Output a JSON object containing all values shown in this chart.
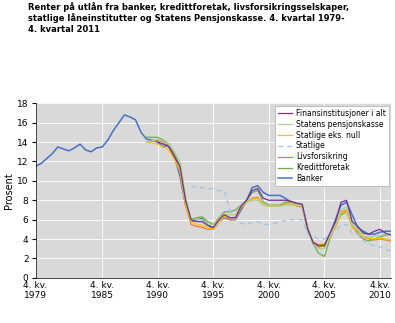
{
  "title_line1": "Renter på utlån fra banker, kredittforetak, livsforsikringsselskaper,",
  "title_line2": "statlige låneinstitutter og Statens Pensjonskasse. 4. kvartal 1979-",
  "title_line3": "4. kvartal 2011",
  "ylabel": "Prosent",
  "ylim": [
    0,
    18
  ],
  "yticks": [
    0,
    2,
    4,
    6,
    8,
    10,
    12,
    14,
    16,
    18
  ],
  "xlim": [
    0,
    128
  ],
  "xtick_positions": [
    0,
    24,
    44,
    64,
    84,
    104,
    124
  ],
  "xtick_labels": [
    "4. kv.\n1979",
    "4. kv.\n1985",
    "4. kv.\n1990",
    "4. kv.\n1995",
    "4. kv.\n2000",
    "4. kv.\n2005",
    "4.kv.\n2010"
  ],
  "plot_bg": "#d9d9d9",
  "series": {
    "Banker": {
      "color": "#4472c4",
      "dash": "solid",
      "lw": 1.1
    },
    "Kredittforetak": {
      "color": "#70ad47",
      "dash": "solid",
      "lw": 0.9
    },
    "Livsforsikring": {
      "color": "#ed7d31",
      "dash": "solid",
      "lw": 0.9
    },
    "Statlige": {
      "color": "#9dc3e6",
      "dash": "dashed",
      "lw": 0.9
    },
    "Statlige eks. null": {
      "color": "#ffc000",
      "dash": "solid",
      "lw": 0.9
    },
    "Statens pensjonskasse": {
      "color": "#a9d18e",
      "dash": "solid",
      "lw": 0.9
    },
    "Finansinstitusjoner i alt": {
      "color": "#7030a0",
      "dash": "solid",
      "lw": 0.9
    }
  },
  "legend_order": [
    "Finansinstitusjoner i alt",
    "Statens pensjonskasse",
    "Statlige eks. null",
    "Statlige",
    "Livsforsikring",
    "Kredittforetak",
    "Banker"
  ]
}
